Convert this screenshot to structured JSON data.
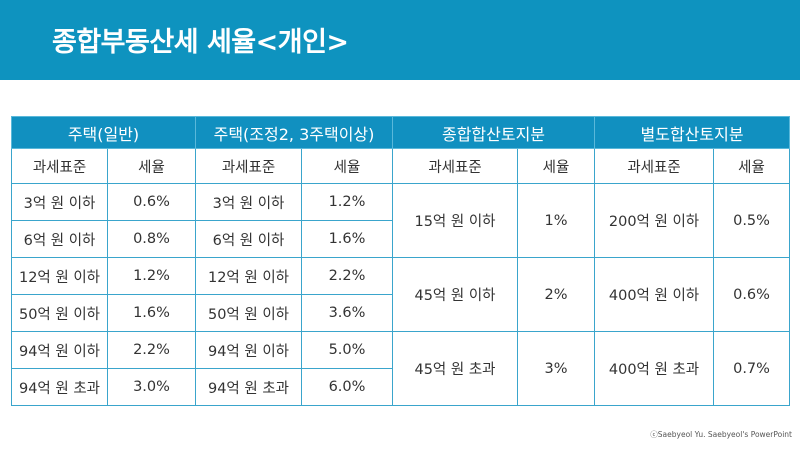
{
  "title": "종합부동산세 세율<개인>",
  "groups": [
    "주택(일반)",
    "주택(조정2, 3주택이상)",
    "종합합산토지분",
    "별도합산토지분"
  ],
  "sub_headers": [
    "과세표준",
    "세율",
    "과세표준",
    "세율",
    "과세표준",
    "세율",
    "과세표준",
    "세율"
  ],
  "house_general": [
    {
      "base": "3억 원 이하",
      "rate": "0.6%"
    },
    {
      "base": "6억 원 이하",
      "rate": "0.8%"
    },
    {
      "base": "12억 원 이하",
      "rate": "1.2%"
    },
    {
      "base": "50억 원 이하",
      "rate": "1.6%"
    },
    {
      "base": "94억 원 이하",
      "rate": "2.2%"
    },
    {
      "base": "94억 원 초과",
      "rate": "3.0%"
    }
  ],
  "house_multi": [
    {
      "base": "3억 원 이하",
      "rate": "1.2%"
    },
    {
      "base": "6억 원 이하",
      "rate": "1.6%"
    },
    {
      "base": "12억 원 이하",
      "rate": "2.2%"
    },
    {
      "base": "50억 원 이하",
      "rate": "3.6%"
    },
    {
      "base": "94억 원 이하",
      "rate": "5.0%"
    },
    {
      "base": "94억 원 초과",
      "rate": "6.0%"
    }
  ],
  "land_comprehensive": [
    {
      "base": "15억 원 이하",
      "rate": "1%"
    },
    {
      "base": "45억 원 이하",
      "rate": "2%"
    },
    {
      "base": "45억 원 초과",
      "rate": "3%"
    }
  ],
  "land_separate": [
    {
      "base": "200억 원 이하",
      "rate": "0.5%"
    },
    {
      "base": "400억 원 이하",
      "rate": "0.6%"
    },
    {
      "base": "400억 원 초과",
      "rate": "0.7%"
    }
  ],
  "credit": "ⓒSaebyeol Yu. Saebyeol's PowerPoint"
}
